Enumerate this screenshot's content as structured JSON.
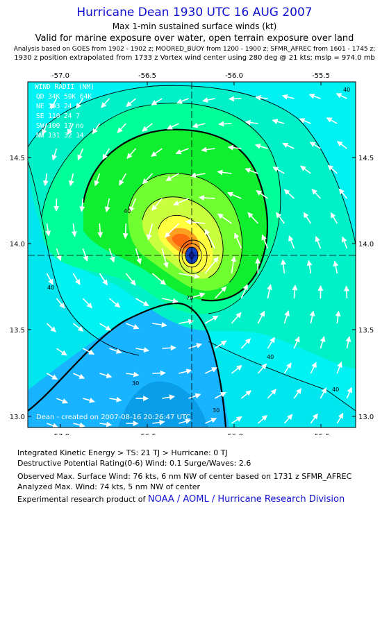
{
  "title": "Hurricane Dean 1930 UTC 16 AUG 2007",
  "subtitle1": "Max 1-min sustained surface winds (kt)",
  "subtitle2": "Valid for marine exposure over water, open terrain exposure over land",
  "analysis_line": "Analysis based on  GOES from 1902 - 1902 z;  MOORED_BUOY from 1200 - 1900 z;  SFMR_AFREC from 1601 - 1745 z;",
  "position_line": "1930 z position extrapolated from 1733 z Vortex wind center using 280 deg @ 21 kts; mslp = 974.0 mb",
  "map": {
    "lon_labels": [
      "-57.0",
      "-56.5",
      "-56.0",
      "-55.5"
    ],
    "lat_labels": [
      "14.5",
      "14.0",
      "13.5",
      "13.0"
    ],
    "wind_radii": {
      "header": "WIND RADII (NM)",
      "rows": [
        "QD  34K  50K  64K",
        "NE  133   24",
        "SE  110   24    7",
        "SW  100   17   no",
        "NW  131   32   14"
      ]
    },
    "credit": "Dean - created on 2007-08-16 20:26:47 UTC",
    "contour_labels": [
      "40",
      "40",
      "40",
      "40",
      "30",
      "30",
      "70",
      "40"
    ],
    "colors": {
      "lt_cyan": "#00f2f2",
      "cyan": "#00e6ee",
      "blue": "#18b4ff",
      "dk_blue": "#0a9ee8",
      "teal": "#00f0c8",
      "green1": "#00ff99",
      "green2": "#10ee30",
      "green3": "#70ff30",
      "yellow_green": "#caff40",
      "yellow": "#ffff40",
      "orange": "#ffa020",
      "red_orange": "#ff6a10",
      "eye_blue": "#1040c0"
    }
  },
  "stats": {
    "line1": "Integrated Kinetic Energy > TS: 21 TJ   > Hurricane: 0 TJ",
    "line2": "Destructive Potential Rating(0-6)   Wind: 0.1 Surge/Waves: 2.6",
    "line3": "Observed Max. Surface Wind: 76 kts, 6 nm NW of center based on 1731 z SFMR_AFREC",
    "line4": "Analyzed Max. Wind: 74 kts, 5 nm NW of center",
    "line5_prefix": "Experimental research product of ",
    "line5_org": "NOAA / AOML / Hurricane Research Division"
  }
}
